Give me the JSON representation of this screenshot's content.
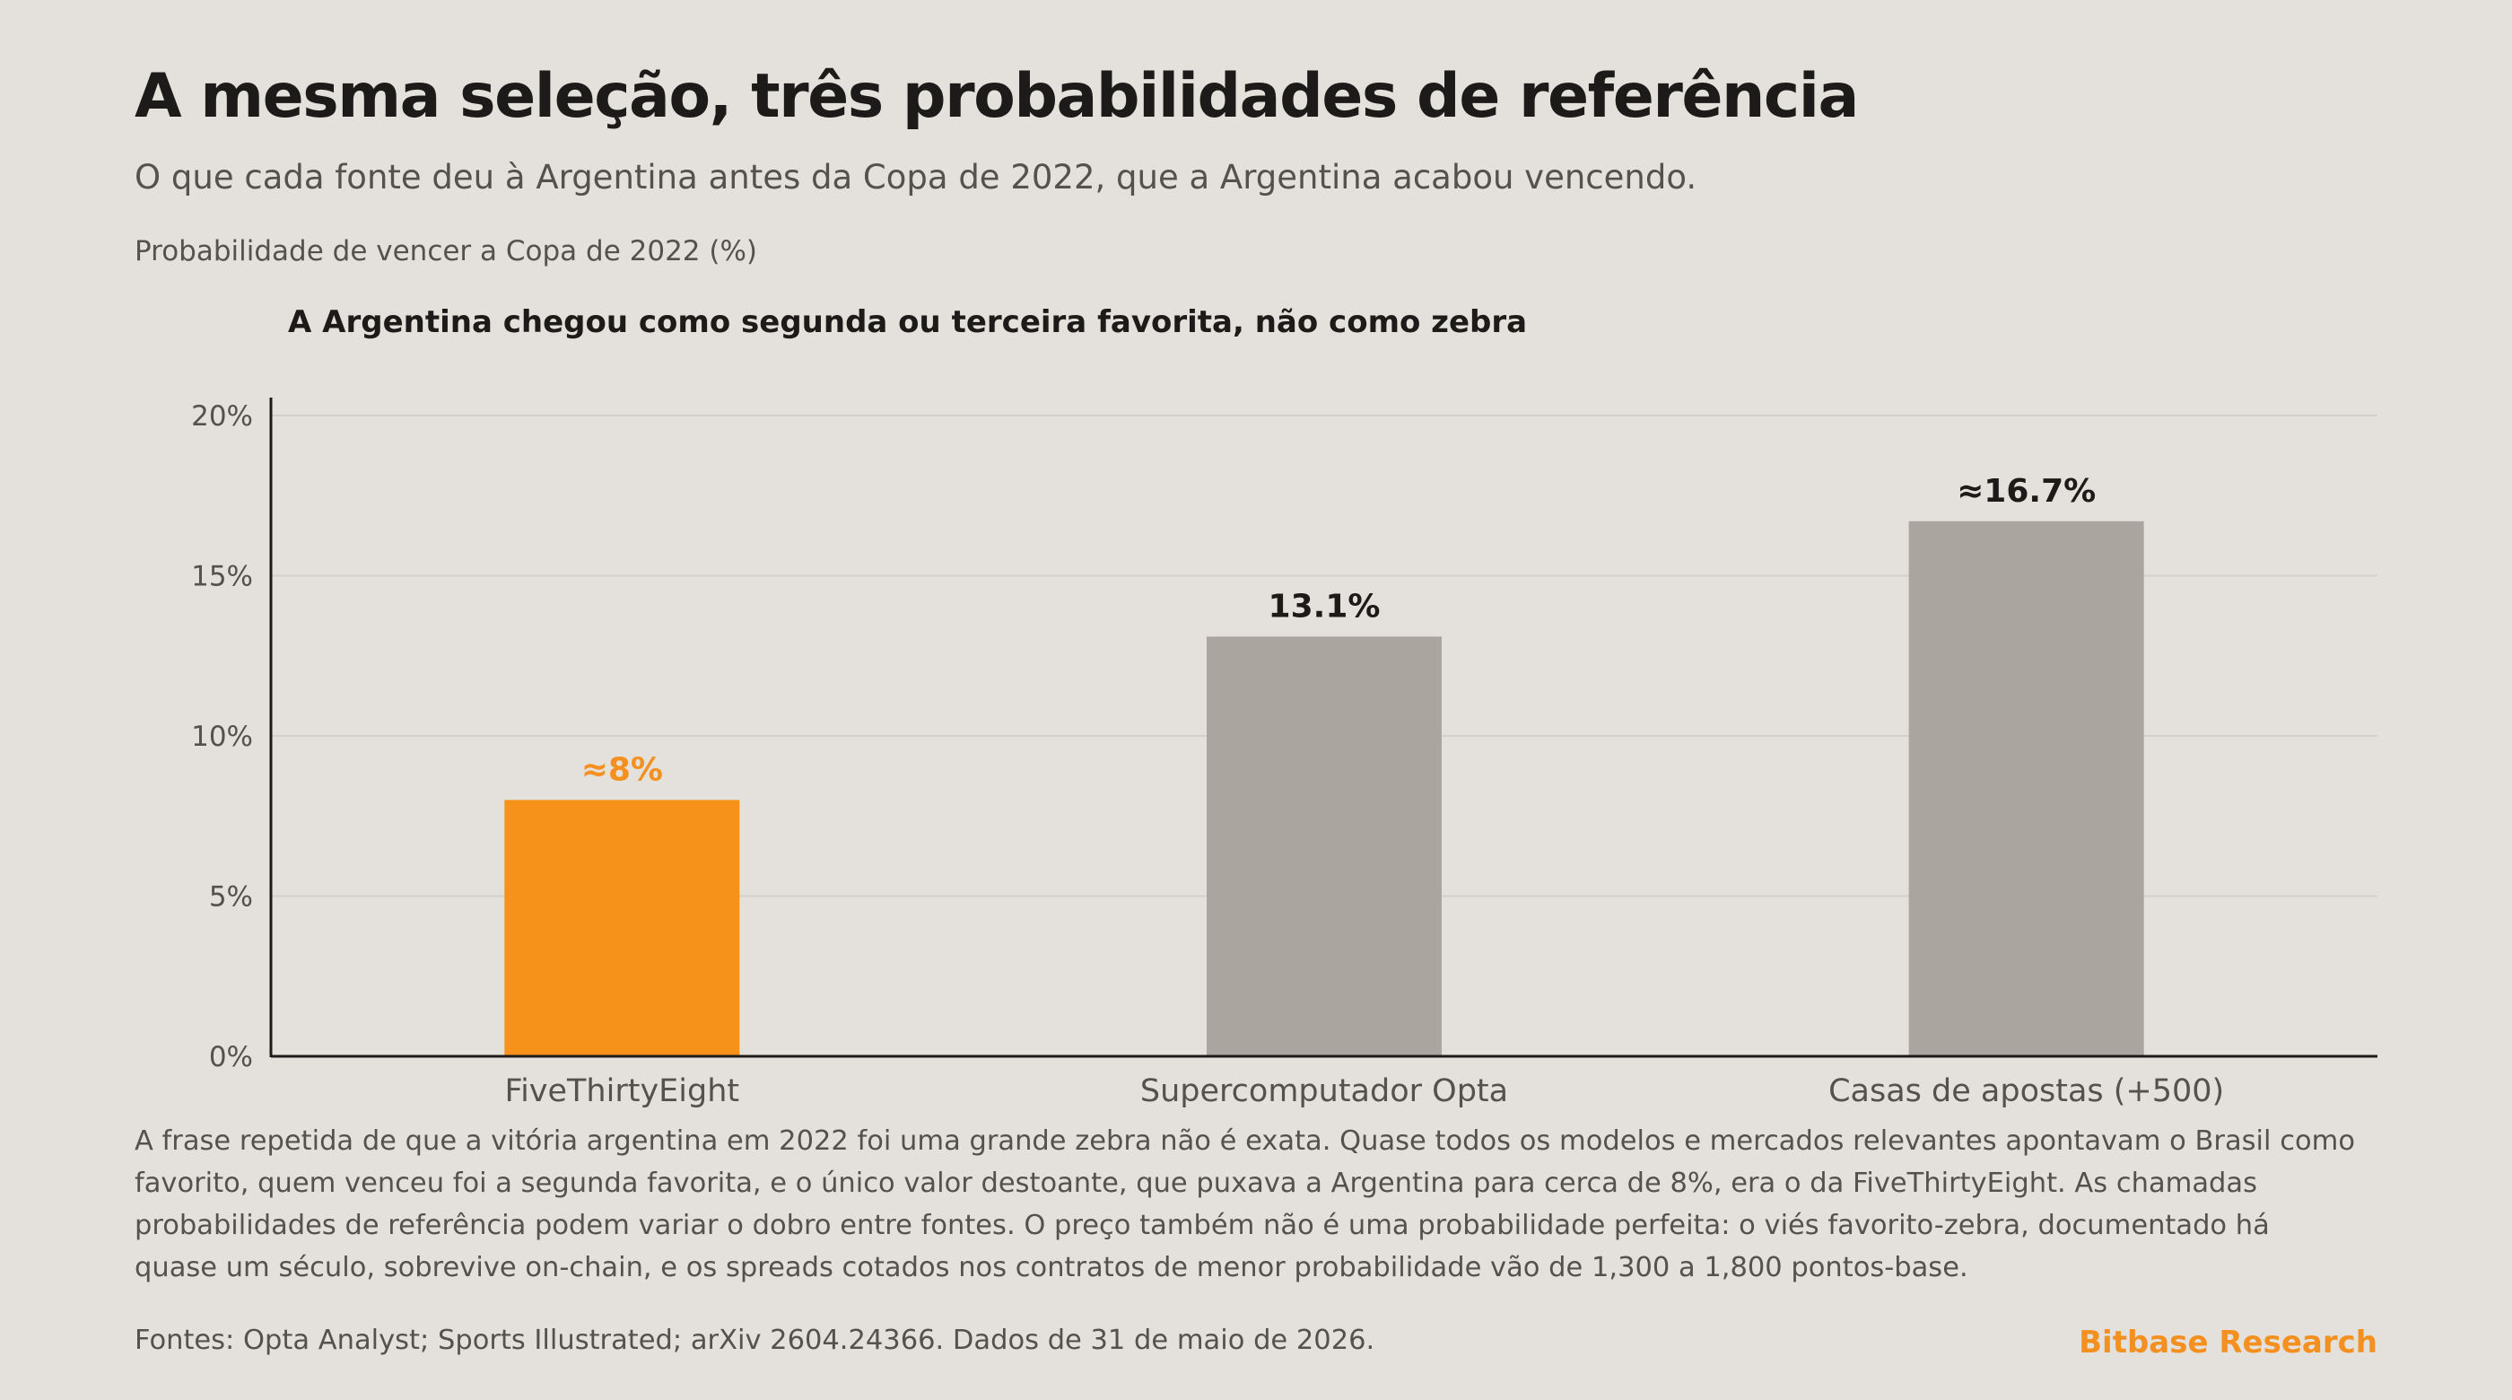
{
  "header": {
    "title": "A mesma seleção, três probabilidades de referência",
    "subtitle": "O que cada fonte deu à Argentina antes da Copa de 2022, que a Argentina acabou vencendo.",
    "unit_label": "Probabilidade de vencer a Copa de 2022 (%)"
  },
  "chart_data": {
    "type": "bar",
    "title": "A Argentina chegou como segunda ou terceira favorita, não como zebra",
    "xlabel": "",
    "ylabel": "Probabilidade de vencer a Copa de 2022 (%)",
    "categories": [
      "FiveThirtyEight",
      "Supercomputador Opta",
      "Casas de apostas (+500)"
    ],
    "values": [
      8,
      13.1,
      16.7
    ],
    "data_labels": [
      "≈8%",
      "13.1%",
      "≈16.7%"
    ],
    "ylim": [
      0,
      20
    ],
    "yticks": [
      0,
      5,
      10,
      15,
      20
    ],
    "ytick_labels": [
      "0%",
      "5%",
      "10%",
      "15%",
      "20%"
    ],
    "grid": true,
    "highlight_index": 0,
    "colors": {
      "highlight": "#f6911a",
      "default": "#aaa59e",
      "highlight_label": "#f39020",
      "label": "#1c1b19",
      "grid": "#d3cfc9",
      "axis": "#1c1b19",
      "tick_text": "#55524d"
    }
  },
  "footer": {
    "body": "A frase repetida de que a vitória argentina em 2022 foi uma grande zebra não é exata. Quase todos os modelos e mercados relevantes apontavam o Brasil como favorito, quem venceu foi a segunda favorita, e o único valor destoante, que puxava a Argentina para cerca de 8%, era o da FiveThirtyEight. As chamadas probabilidades de referência podem variar o dobro entre fontes. O preço também não é uma probabilidade perfeita: o viés favorito-zebra, documentado há quase um século, sobrevive on-chain, e os spreads cotados nos contratos de menor probabilidade vão de 1,300 a 1,800 pontos-base.",
    "sources": "Fontes: Opta Analyst; Sports Illustrated; arXiv 2604.24366. Dados de 31 de maio de 2026.",
    "brand": "Bitbase Research"
  }
}
